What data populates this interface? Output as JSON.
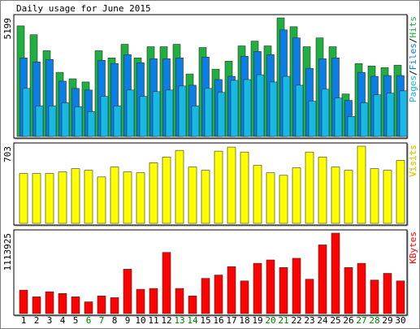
{
  "title": "Daily usage for June 2015",
  "chart_data": [
    {
      "type": "bar",
      "ylim": [
        0,
        5199
      ],
      "yticks": [
        5199
      ],
      "grid": false,
      "legend_separator": "/",
      "series": [
        {
          "name": "Pages",
          "color": "#18b8e8",
          "values": [
            2108,
            1335,
            1335,
            1475,
            1300,
            1089,
            1756,
            1335,
            2037,
            1756,
            1967,
            2037,
            2213,
            1335,
            2108,
            1932,
            2459,
            2494,
            2705,
            2389,
            2635,
            2248,
            1546,
            2072,
            1686,
            878,
            1475,
            1827,
            1897,
            2002
          ]
        },
        {
          "name": "Files",
          "color": "#0a7ee8",
          "values": [
            3443,
            3267,
            3372,
            2424,
            2108,
            2037,
            3337,
            3197,
            3583,
            3232,
            3408,
            3408,
            3443,
            2248,
            3478,
            2494,
            2635,
            3513,
            3724,
            3583,
            4672,
            4321,
            2986,
            3408,
            3443,
            1581,
            2810,
            2635,
            2670,
            2670
          ]
        },
        {
          "name": "Hits",
          "color": "#20b040",
          "values": [
            4848,
            4461,
            3759,
            2810,
            2529,
            2389,
            3759,
            3443,
            4040,
            3443,
            3934,
            3934,
            4040,
            2740,
            3899,
            2951,
            3302,
            3970,
            4180,
            3970,
            5199,
            4813,
            3934,
            4321,
            3934,
            1862,
            3197,
            3091,
            3021,
            3126
          ]
        }
      ]
    },
    {
      "type": "bar",
      "ylim": [
        0,
        703
      ],
      "yticks": [
        703
      ],
      "grid": false,
      "series": [
        {
          "name": "Visits",
          "color": "#ffff00",
          "values": [
            454,
            454,
            454,
            469,
            499,
            484,
            423,
            514,
            469,
            461,
            552,
            605,
            665,
            514,
            484,
            658,
            695,
            650,
            529,
            461,
            438,
            506,
            650,
            605,
            514,
            484,
            703,
            499,
            484,
            574
          ]
        }
      ]
    },
    {
      "type": "bar",
      "ylim": [
        0,
        1113925
      ],
      "yticks": [
        1113925
      ],
      "grid": false,
      "categories": [
        "1",
        "2",
        "3",
        "4",
        "5",
        "6",
        "7",
        "8",
        "9",
        "10",
        "11",
        "12",
        "13",
        "14",
        "15",
        "16",
        "17",
        "18",
        "19",
        "20",
        "21",
        "22",
        "23",
        "24",
        "25",
        "26",
        "27",
        "28",
        "29",
        "30"
      ],
      "category_colors": [
        "#000000",
        "#000000",
        "#000000",
        "#000000",
        "#000000",
        "#008000",
        "#008000",
        "#000000",
        "#000000",
        "#000000",
        "#000000",
        "#000000",
        "#008000",
        "#008000",
        "#000000",
        "#000000",
        "#000000",
        "#000000",
        "#000000",
        "#008000",
        "#008000",
        "#000000",
        "#000000",
        "#000000",
        "#000000",
        "#000000",
        "#008000",
        "#008000",
        "#000000",
        "#000000"
      ],
      "series": [
        {
          "name": "KBytes",
          "color": "#ff0000",
          "values": [
            324895,
            232068,
            301690,
            278481,
            232068,
            162447,
            243671,
            220463,
            614978,
            336499,
            348102,
            847055,
            348102,
            243671,
            487342,
            533758,
            649793,
            452532,
            696203,
            742617,
            638189,
            765823,
            475738,
            951478,
            1113925,
            638189,
            696203,
            464135,
            556963,
            452532
          ]
        }
      ]
    }
  ]
}
